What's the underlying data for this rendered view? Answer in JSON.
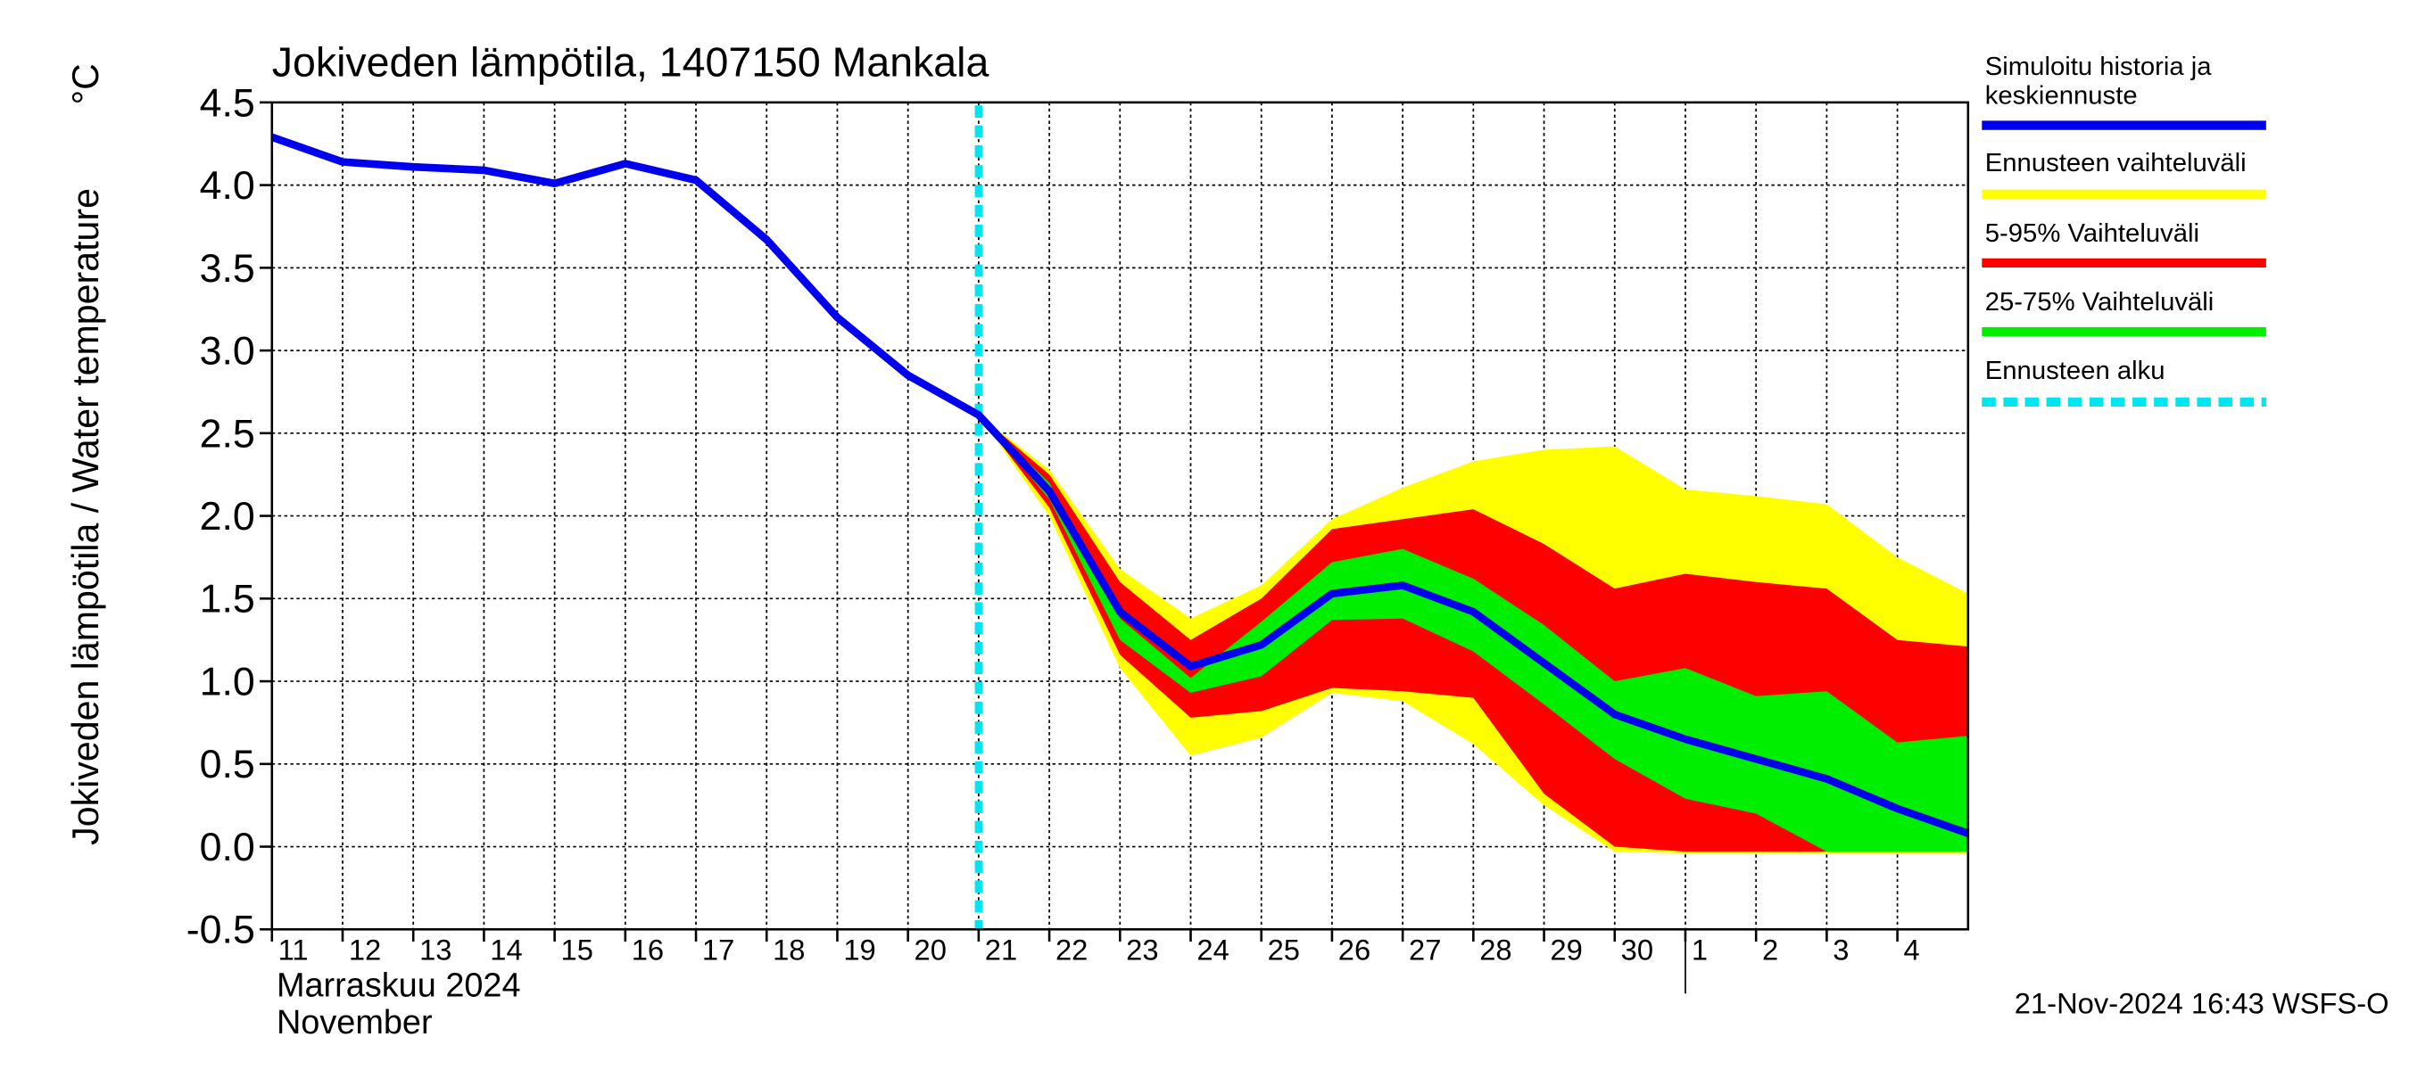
{
  "chart_data": {
    "type": "band-line",
    "title": "Jokiveden lämpötila, 1407150 Mankala",
    "y_label": "Jokiveden lämpötila / Water temperature",
    "y_unit": "°C",
    "x_label_fi": "Marraskuu 2024",
    "x_label_en": "November",
    "timestamp": "21-Nov-2024 16:43 WSFS-O",
    "grid": true,
    "legend": "right",
    "xlim": [
      "2024-11-11",
      "2024-12-05"
    ],
    "ylim": [
      -0.5,
      4.5
    ],
    "yticks": [
      -0.5,
      {
        "value": 0,
        "label": "0.0"
      },
      0.5,
      {
        "value": 1,
        "label": "1.0"
      },
      1.5,
      {
        "value": 2,
        "label": "2.0"
      },
      2.5,
      {
        "value": 3,
        "label": "3.0"
      },
      3.5,
      {
        "value": 4,
        "label": "4.0"
      },
      4.5
    ],
    "xticks": [
      {
        "value": "2024-11-11",
        "label": "11"
      },
      {
        "value": "2024-11-12",
        "label": "12"
      },
      {
        "value": "2024-11-13",
        "label": "13"
      },
      {
        "value": "2024-11-14",
        "label": "14"
      },
      {
        "value": "2024-11-15",
        "label": "15"
      },
      {
        "value": "2024-11-16",
        "label": "16"
      },
      {
        "value": "2024-11-17",
        "label": "17"
      },
      {
        "value": "2024-11-18",
        "label": "18"
      },
      {
        "value": "2024-11-19",
        "label": "19"
      },
      {
        "value": "2024-11-20",
        "label": "20"
      },
      {
        "value": "2024-11-21",
        "label": "21"
      },
      {
        "value": "2024-11-22",
        "label": "22"
      },
      {
        "value": "2024-11-23",
        "label": "23"
      },
      {
        "value": "2024-11-24",
        "label": "24"
      },
      {
        "value": "2024-11-25",
        "label": "25"
      },
      {
        "value": "2024-11-26",
        "label": "26"
      },
      {
        "value": "2024-11-27",
        "label": "27"
      },
      {
        "value": "2024-11-28",
        "label": "28"
      },
      {
        "value": "2024-11-29",
        "label": "29"
      },
      {
        "value": "2024-11-30",
        "label": "30"
      },
      {
        "value": "2024-12-01",
        "label": "1"
      },
      {
        "value": "2024-12-02",
        "label": "2"
      },
      {
        "value": "2024-12-03",
        "label": "3"
      },
      {
        "value": "2024-12-04",
        "label": "4"
      }
    ],
    "month_start": "2024-12-01",
    "x": [
      "2024-11-11",
      "2024-11-12",
      "2024-11-13",
      "2024-11-14",
      "2024-11-15",
      "2024-11-16",
      "2024-11-17",
      "2024-11-18",
      "2024-11-19",
      "2024-11-20",
      "2024-11-21",
      "2024-11-22",
      "2024-11-23",
      "2024-11-24",
      "2024-11-25",
      "2024-11-26",
      "2024-11-27",
      "2024-11-28",
      "2024-11-29",
      "2024-11-30",
      "2024-12-01",
      "2024-12-02",
      "2024-12-03",
      "2024-12-04",
      "2024-12-05"
    ],
    "bands": [
      {
        "name": "Ennusteen vaihteluväli",
        "color": "#ffff00",
        "high": [
          null,
          null,
          null,
          null,
          null,
          null,
          null,
          null,
          null,
          null,
          2.61,
          2.28,
          1.68,
          1.38,
          1.58,
          1.98,
          2.17,
          2.33,
          2.4,
          2.42,
          2.16,
          2.12,
          2.07,
          1.75,
          1.53
        ],
        "low": [
          null,
          null,
          null,
          null,
          null,
          null,
          null,
          null,
          null,
          null,
          2.61,
          2.0,
          1.08,
          0.55,
          0.66,
          0.93,
          0.88,
          0.62,
          0.25,
          -0.03,
          -0.04,
          -0.04,
          -0.04,
          -0.04,
          -0.04
        ]
      },
      {
        "name": "5-95% Vaihteluväli",
        "color": "#ff0000",
        "high": [
          null,
          null,
          null,
          null,
          null,
          null,
          null,
          null,
          null,
          null,
          2.61,
          2.25,
          1.6,
          1.25,
          1.5,
          1.92,
          1.98,
          2.04,
          1.83,
          1.56,
          1.65,
          1.6,
          1.56,
          1.25,
          1.21
        ],
        "low": [
          null,
          null,
          null,
          null,
          null,
          null,
          null,
          null,
          null,
          null,
          2.61,
          2.05,
          1.16,
          0.78,
          0.82,
          0.96,
          0.94,
          0.9,
          0.32,
          0.0,
          -0.03,
          -0.03,
          -0.03,
          -0.03,
          -0.03
        ]
      },
      {
        "name": "25-75% Vaihteluväli",
        "color": "#00ee00",
        "high": [
          null,
          null,
          null,
          null,
          null,
          null,
          null,
          null,
          null,
          null,
          2.61,
          2.2,
          1.38,
          1.02,
          1.36,
          1.72,
          1.8,
          1.62,
          1.34,
          1.0,
          1.08,
          0.91,
          0.94,
          0.63,
          0.67
        ],
        "low": [
          null,
          null,
          null,
          null,
          null,
          null,
          null,
          null,
          null,
          null,
          2.61,
          2.1,
          1.25,
          0.93,
          1.03,
          1.37,
          1.38,
          1.18,
          0.86,
          0.53,
          0.29,
          0.2,
          -0.03,
          -0.03,
          -0.03
        ]
      }
    ],
    "series": [
      {
        "name": "Simuloitu historia ja keskiennuste",
        "color": "#0000ee",
        "values": [
          4.29,
          4.14,
          4.11,
          4.09,
          4.01,
          4.13,
          4.03,
          3.67,
          3.2,
          2.85,
          2.61,
          2.15,
          1.42,
          1.09,
          1.22,
          1.53,
          1.58,
          1.42,
          1.11,
          0.8,
          0.65,
          0.53,
          0.41,
          0.23,
          0.08
        ]
      }
    ],
    "forecast_start": {
      "name": "Ennusteen alku",
      "color": "#00e5ee",
      "x": "2024-11-21"
    }
  }
}
